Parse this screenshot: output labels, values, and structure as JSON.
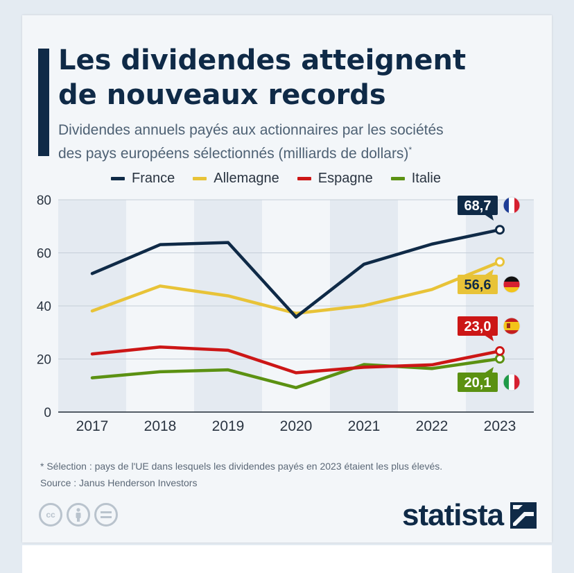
{
  "header": {
    "title_line1": "Les dividendes atteignent",
    "title_line2": "de nouveaux records",
    "subtitle_line1": "Dividendes annuels payés aux actionnaires par les sociétés",
    "subtitle_line2": "des pays européens sélectionnés (milliards de dollars)",
    "subtitle_mark": "*"
  },
  "legend": [
    {
      "label": "France",
      "color": "#0f2a47"
    },
    {
      "label": "Allemagne",
      "color": "#e8c338"
    },
    {
      "label": "Espagne",
      "color": "#cc1616"
    },
    {
      "label": "Italie",
      "color": "#5b9112"
    }
  ],
  "chart_data": {
    "type": "line",
    "x": [
      "2017",
      "2018",
      "2019",
      "2020",
      "2021",
      "2022",
      "2023"
    ],
    "ylim": [
      0,
      80
    ],
    "yticks": [
      0,
      20,
      40,
      60,
      80
    ],
    "grid": true,
    "legend_position": "top",
    "series": [
      {
        "name": "France",
        "color": "#0f2a47",
        "values": [
          52.2,
          63.1,
          63.9,
          35.8,
          55.7,
          63.3,
          68.7
        ],
        "end_label": "68,7",
        "label_text_color": "#ffffff",
        "flag": "fr"
      },
      {
        "name": "Allemagne",
        "color": "#e8c338",
        "values": [
          38.1,
          47.5,
          43.8,
          37.2,
          40.1,
          46.2,
          56.6
        ],
        "end_label": "56,6",
        "label_text_color": "#0f2a47",
        "flag": "de"
      },
      {
        "name": "Espagne",
        "color": "#cc1616",
        "values": [
          21.9,
          24.5,
          23.3,
          14.8,
          16.9,
          17.8,
          23.0
        ],
        "end_label": "23,0",
        "label_text_color": "#ffffff",
        "flag": "es"
      },
      {
        "name": "Italie",
        "color": "#5b9112",
        "values": [
          12.9,
          15.2,
          15.9,
          9.2,
          17.9,
          16.4,
          20.1
        ],
        "end_label": "20,1",
        "label_text_color": "#ffffff",
        "flag": "it"
      }
    ]
  },
  "footer": {
    "note": "* Sélection : pays de l'UE dans lesquels les dividendes payés en 2023 étaient les plus élevés.",
    "source": "Source : Janus Henderson Investors",
    "cc_icons": [
      "cc-icon",
      "by-person-icon",
      "nd-equals-icon"
    ],
    "brand": "statista"
  }
}
